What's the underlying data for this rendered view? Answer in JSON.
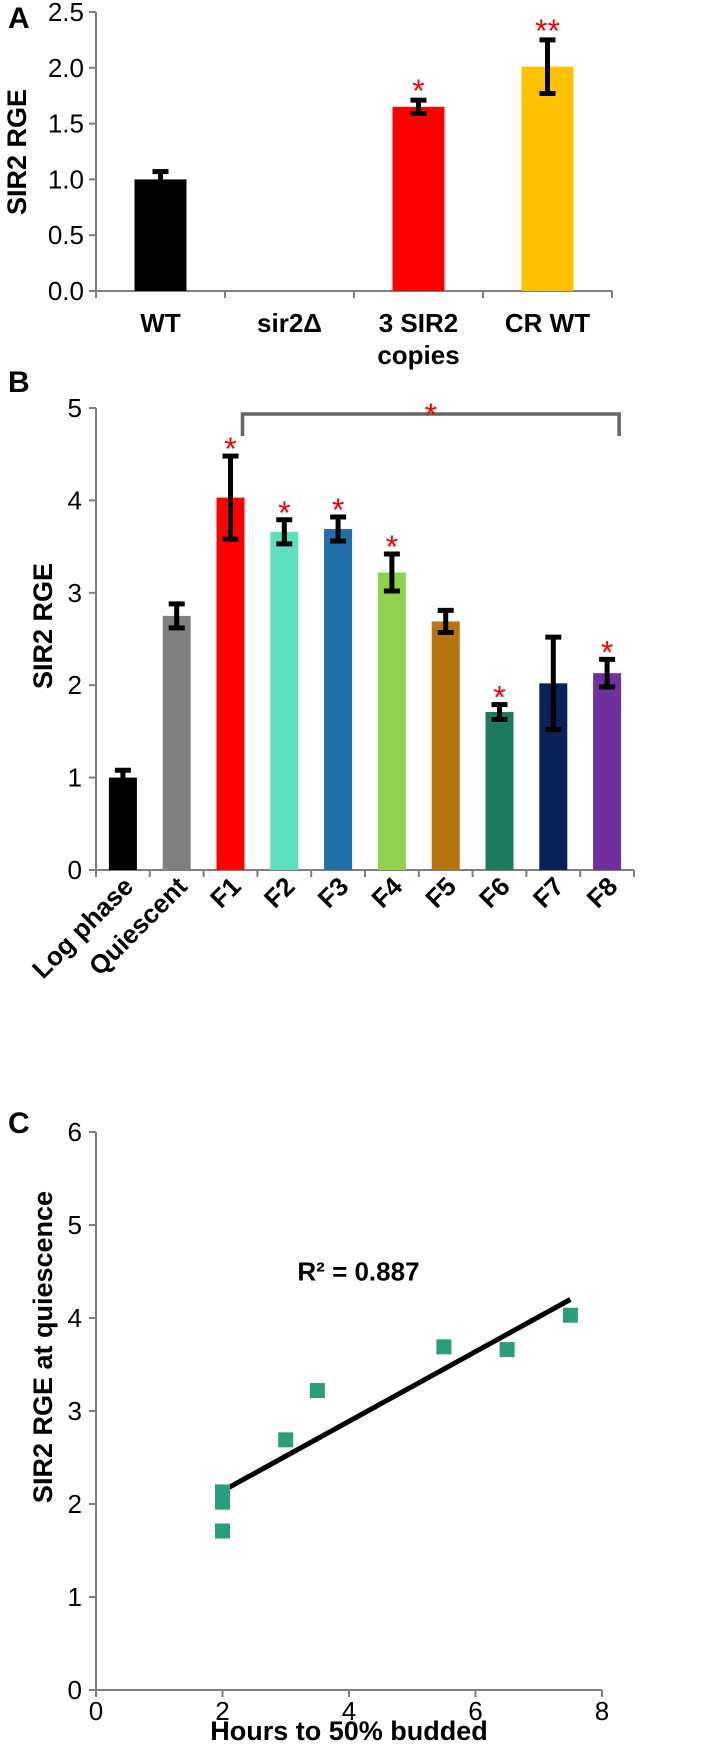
{
  "chart_data": [
    {
      "panel": "A",
      "type": "bar",
      "ylabel": "SIR2 RGE",
      "ylim": [
        0,
        2.5
      ],
      "yticks": [
        "0.0",
        "0.5",
        "1.0",
        "1.5",
        "2.0",
        "2.5"
      ],
      "categories": [
        [
          "WT"
        ],
        [
          "sir2Δ"
        ],
        [
          "3 SIR2",
          "copies"
        ],
        [
          "CR WT"
        ]
      ],
      "values": [
        1.0,
        0,
        1.65,
        2.01
      ],
      "errors": [
        0.07,
        0,
        0.06,
        0.24
      ],
      "significance": [
        "",
        "",
        "*",
        "**"
      ],
      "colors": [
        "#000000",
        "#000000",
        "#ff0000",
        "#ffc000"
      ]
    },
    {
      "panel": "B",
      "type": "bar",
      "ylabel": "SIR2 RGE",
      "ylim": [
        0,
        5
      ],
      "yticks": [
        "0",
        "1",
        "2",
        "3",
        "4",
        "5"
      ],
      "categories": [
        "Log phase",
        "Quiescent",
        "F1",
        "F2",
        "F3",
        "F4",
        "F5",
        "F6",
        "F7",
        "F8"
      ],
      "values": [
        1.0,
        2.75,
        4.03,
        3.66,
        3.69,
        3.22,
        2.69,
        1.71,
        2.02,
        2.13
      ],
      "errors": [
        0.08,
        0.13,
        0.45,
        0.13,
        0.13,
        0.2,
        0.12,
        0.08,
        0.5,
        0.15
      ],
      "significance": [
        "",
        "",
        "*",
        "*",
        "*",
        "*",
        "",
        "*",
        "",
        "*"
      ],
      "colors": [
        "#000000",
        "#808080",
        "#ff0000",
        "#5cdfbe",
        "#1f6fa8",
        "#92d050",
        "#b8740f",
        "#1c7a5e",
        "#0a2259",
        "#7030a0"
      ],
      "bracket": {
        "from": "F1",
        "to": "F8",
        "label": "*"
      }
    },
    {
      "panel": "C",
      "type": "scatter",
      "xlabel": "Hours to 50% budded",
      "ylabel": "SIR2 RGE at quiescence",
      "xlim": [
        0,
        8
      ],
      "ylim": [
        0,
        6
      ],
      "xticks": [
        "0",
        "2",
        "4",
        "6",
        "8"
      ],
      "yticks": [
        "0",
        "1",
        "2",
        "3",
        "4",
        "5",
        "6"
      ],
      "points": [
        {
          "x": 2,
          "y": 1.71
        },
        {
          "x": 2,
          "y": 2.02
        },
        {
          "x": 2,
          "y": 2.13
        },
        {
          "x": 3,
          "y": 2.69
        },
        {
          "x": 3.5,
          "y": 3.22
        },
        {
          "x": 5.5,
          "y": 3.69
        },
        {
          "x": 6.5,
          "y": 3.66
        },
        {
          "x": 7.5,
          "y": 4.03
        }
      ],
      "trendline": {
        "x": [
          2,
          7.5
        ],
        "y": [
          2.14,
          4.2
        ]
      },
      "annotation": "R² = 0.887",
      "marker_color": "#2a9d7c"
    }
  ]
}
